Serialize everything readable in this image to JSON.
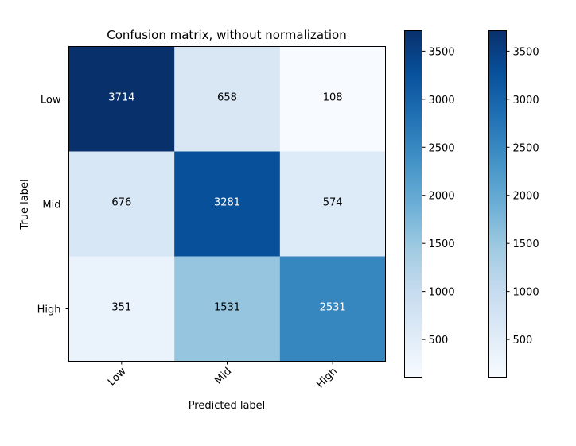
{
  "chart_data": {
    "type": "heatmap",
    "title": "Confusion matrix, without normalization",
    "xlabel": "Predicted label",
    "ylabel": "True label",
    "x_categories": [
      "Low",
      "Mid",
      "High"
    ],
    "y_categories": [
      "Low",
      "Mid",
      "High"
    ],
    "matrix": [
      [
        3714,
        658,
        108
      ],
      [
        676,
        3281,
        574
      ],
      [
        351,
        1531,
        2531
      ]
    ],
    "colormap": "Blues",
    "colormap_stops": [
      "#f7fbff",
      "#deebf7",
      "#c6dbef",
      "#9ecae1",
      "#6baed6",
      "#4292c6",
      "#2171b5",
      "#08519c",
      "#08306b"
    ],
    "vmin": 108,
    "vmax": 3714,
    "text_color_threshold": 1911,
    "text_color_light": "#ffffff",
    "text_color_dark": "#000000",
    "colorbars": [
      {
        "ticks": [
          500,
          1000,
          1500,
          2000,
          2500,
          3000,
          3500
        ]
      },
      {
        "ticks": [
          500,
          1000,
          1500,
          2000,
          2500,
          3000,
          3500
        ]
      }
    ],
    "x_tick_rotation_deg": 45,
    "grid": false
  }
}
